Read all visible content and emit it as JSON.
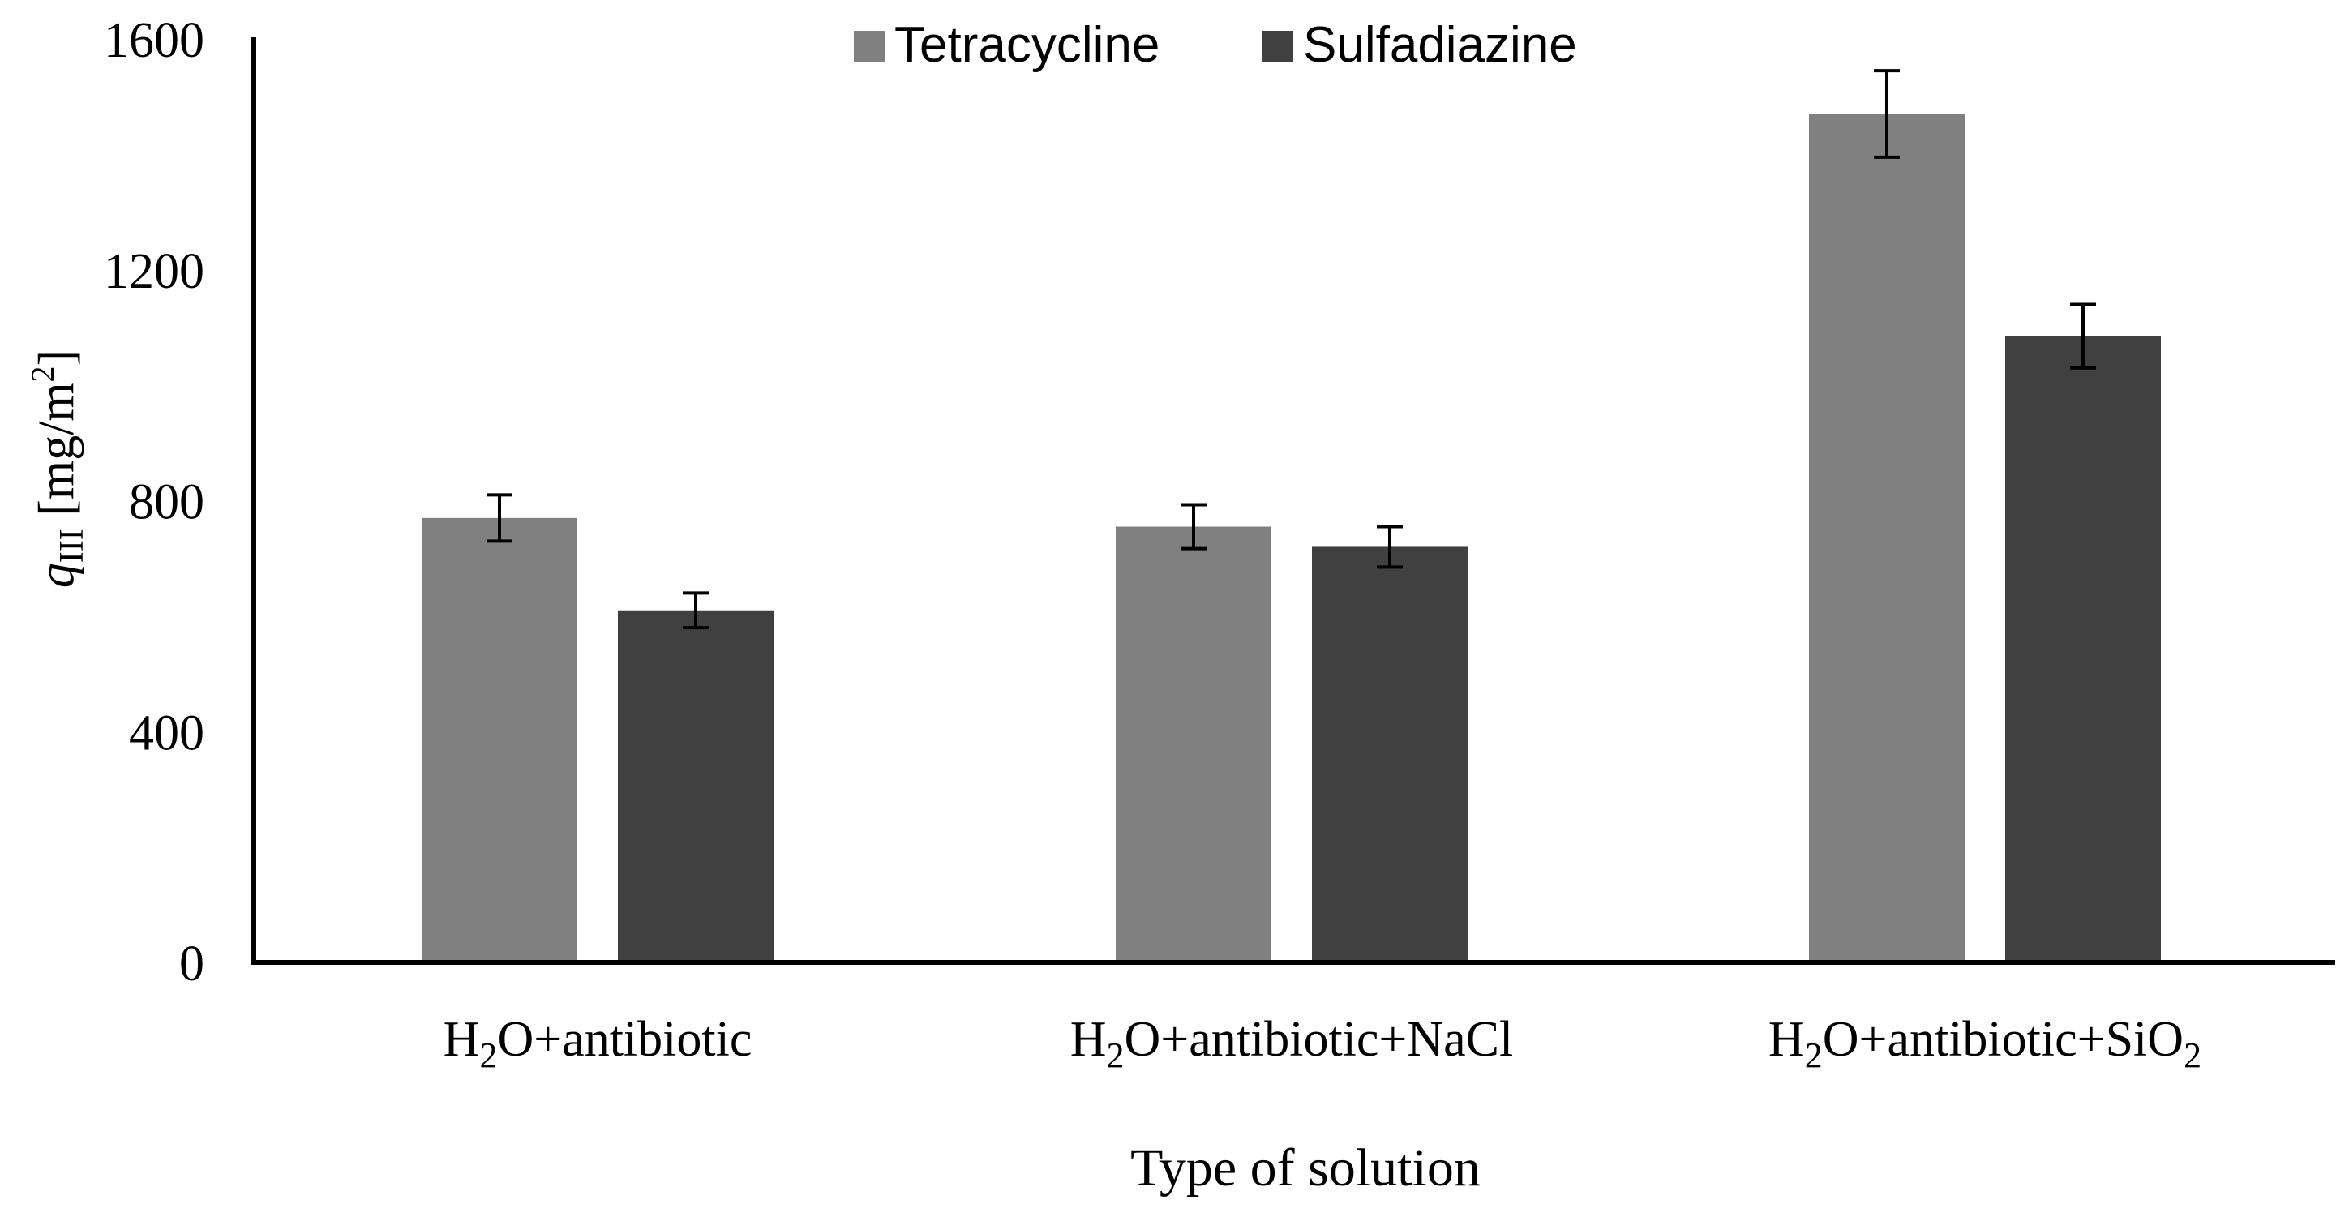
{
  "chart_data": {
    "type": "bar",
    "categories": [
      {
        "main": "H",
        "sub1": "2",
        "mid": "O+antibiotic",
        "sub2": ""
      },
      {
        "main": "H",
        "sub1": "2",
        "mid": "O+antibiotic+NaCl",
        "sub2": ""
      },
      {
        "main": "H",
        "sub1": "2",
        "mid": "O+antibiotic+SiO",
        "sub2": "2"
      }
    ],
    "series": [
      {
        "name": "Tetracycline",
        "color": "#808080",
        "values": [
          770,
          755,
          1470
        ],
        "errors": [
          40,
          38,
          75
        ]
      },
      {
        "name": "Sulfadiazine",
        "color": "#404040",
        "values": [
          610,
          720,
          1085
        ],
        "errors": [
          30,
          35,
          55
        ]
      }
    ],
    "ylim": [
      0,
      1600
    ],
    "yticks": [
      0,
      400,
      800,
      1200,
      1600
    ],
    "xlabel": "Type of solution",
    "ylabel": {
      "symbol": "q",
      "subscript": "III",
      "unit": " [mg/m",
      "unit_sup": "2",
      "unit_close": "]"
    },
    "legend_position": "top-center",
    "grid": false
  }
}
